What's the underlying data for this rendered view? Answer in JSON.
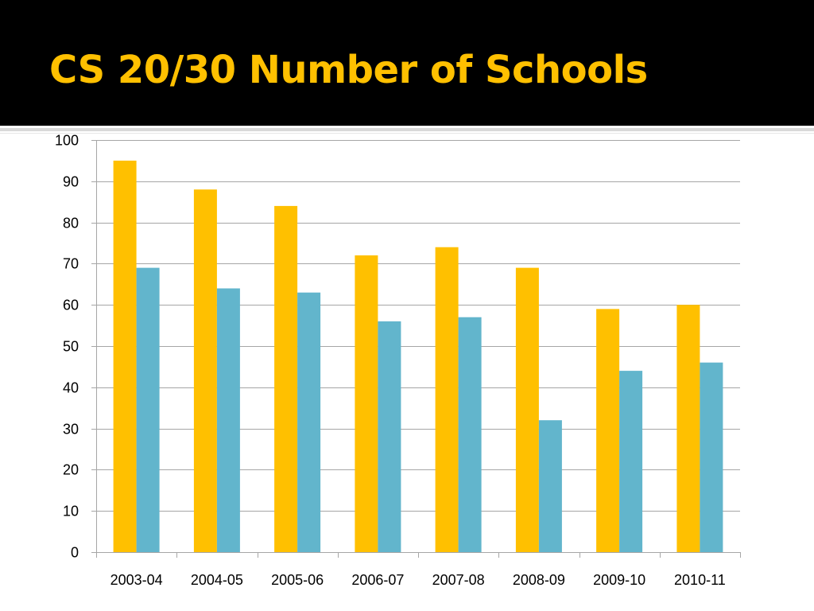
{
  "colors": {
    "title_background": "#000000",
    "title_text": "#ffc000",
    "gridline": "#a6a6a6"
  },
  "slide": {
    "title": "CS 20/30 Number of Schools"
  },
  "chart_data": {
    "type": "bar",
    "title": "",
    "xlabel": "",
    "ylabel": "",
    "ylim": [
      0,
      100
    ],
    "yticks": [
      0,
      10,
      20,
      30,
      40,
      50,
      60,
      70,
      80,
      90,
      100
    ],
    "grid": true,
    "legend": "none",
    "categories": [
      "2003-04",
      "2004-05",
      "2005-06",
      "2006-07",
      "2007-08",
      "2008-09",
      "2009-10",
      "2010-11"
    ],
    "series": [
      {
        "color": "#ffc000",
        "values": [
          95,
          88,
          84,
          72,
          74,
          69,
          59,
          60
        ]
      },
      {
        "color": "#62b5cc",
        "values": [
          69,
          64,
          63,
          56,
          57,
          32,
          44,
          46
        ]
      }
    ]
  }
}
